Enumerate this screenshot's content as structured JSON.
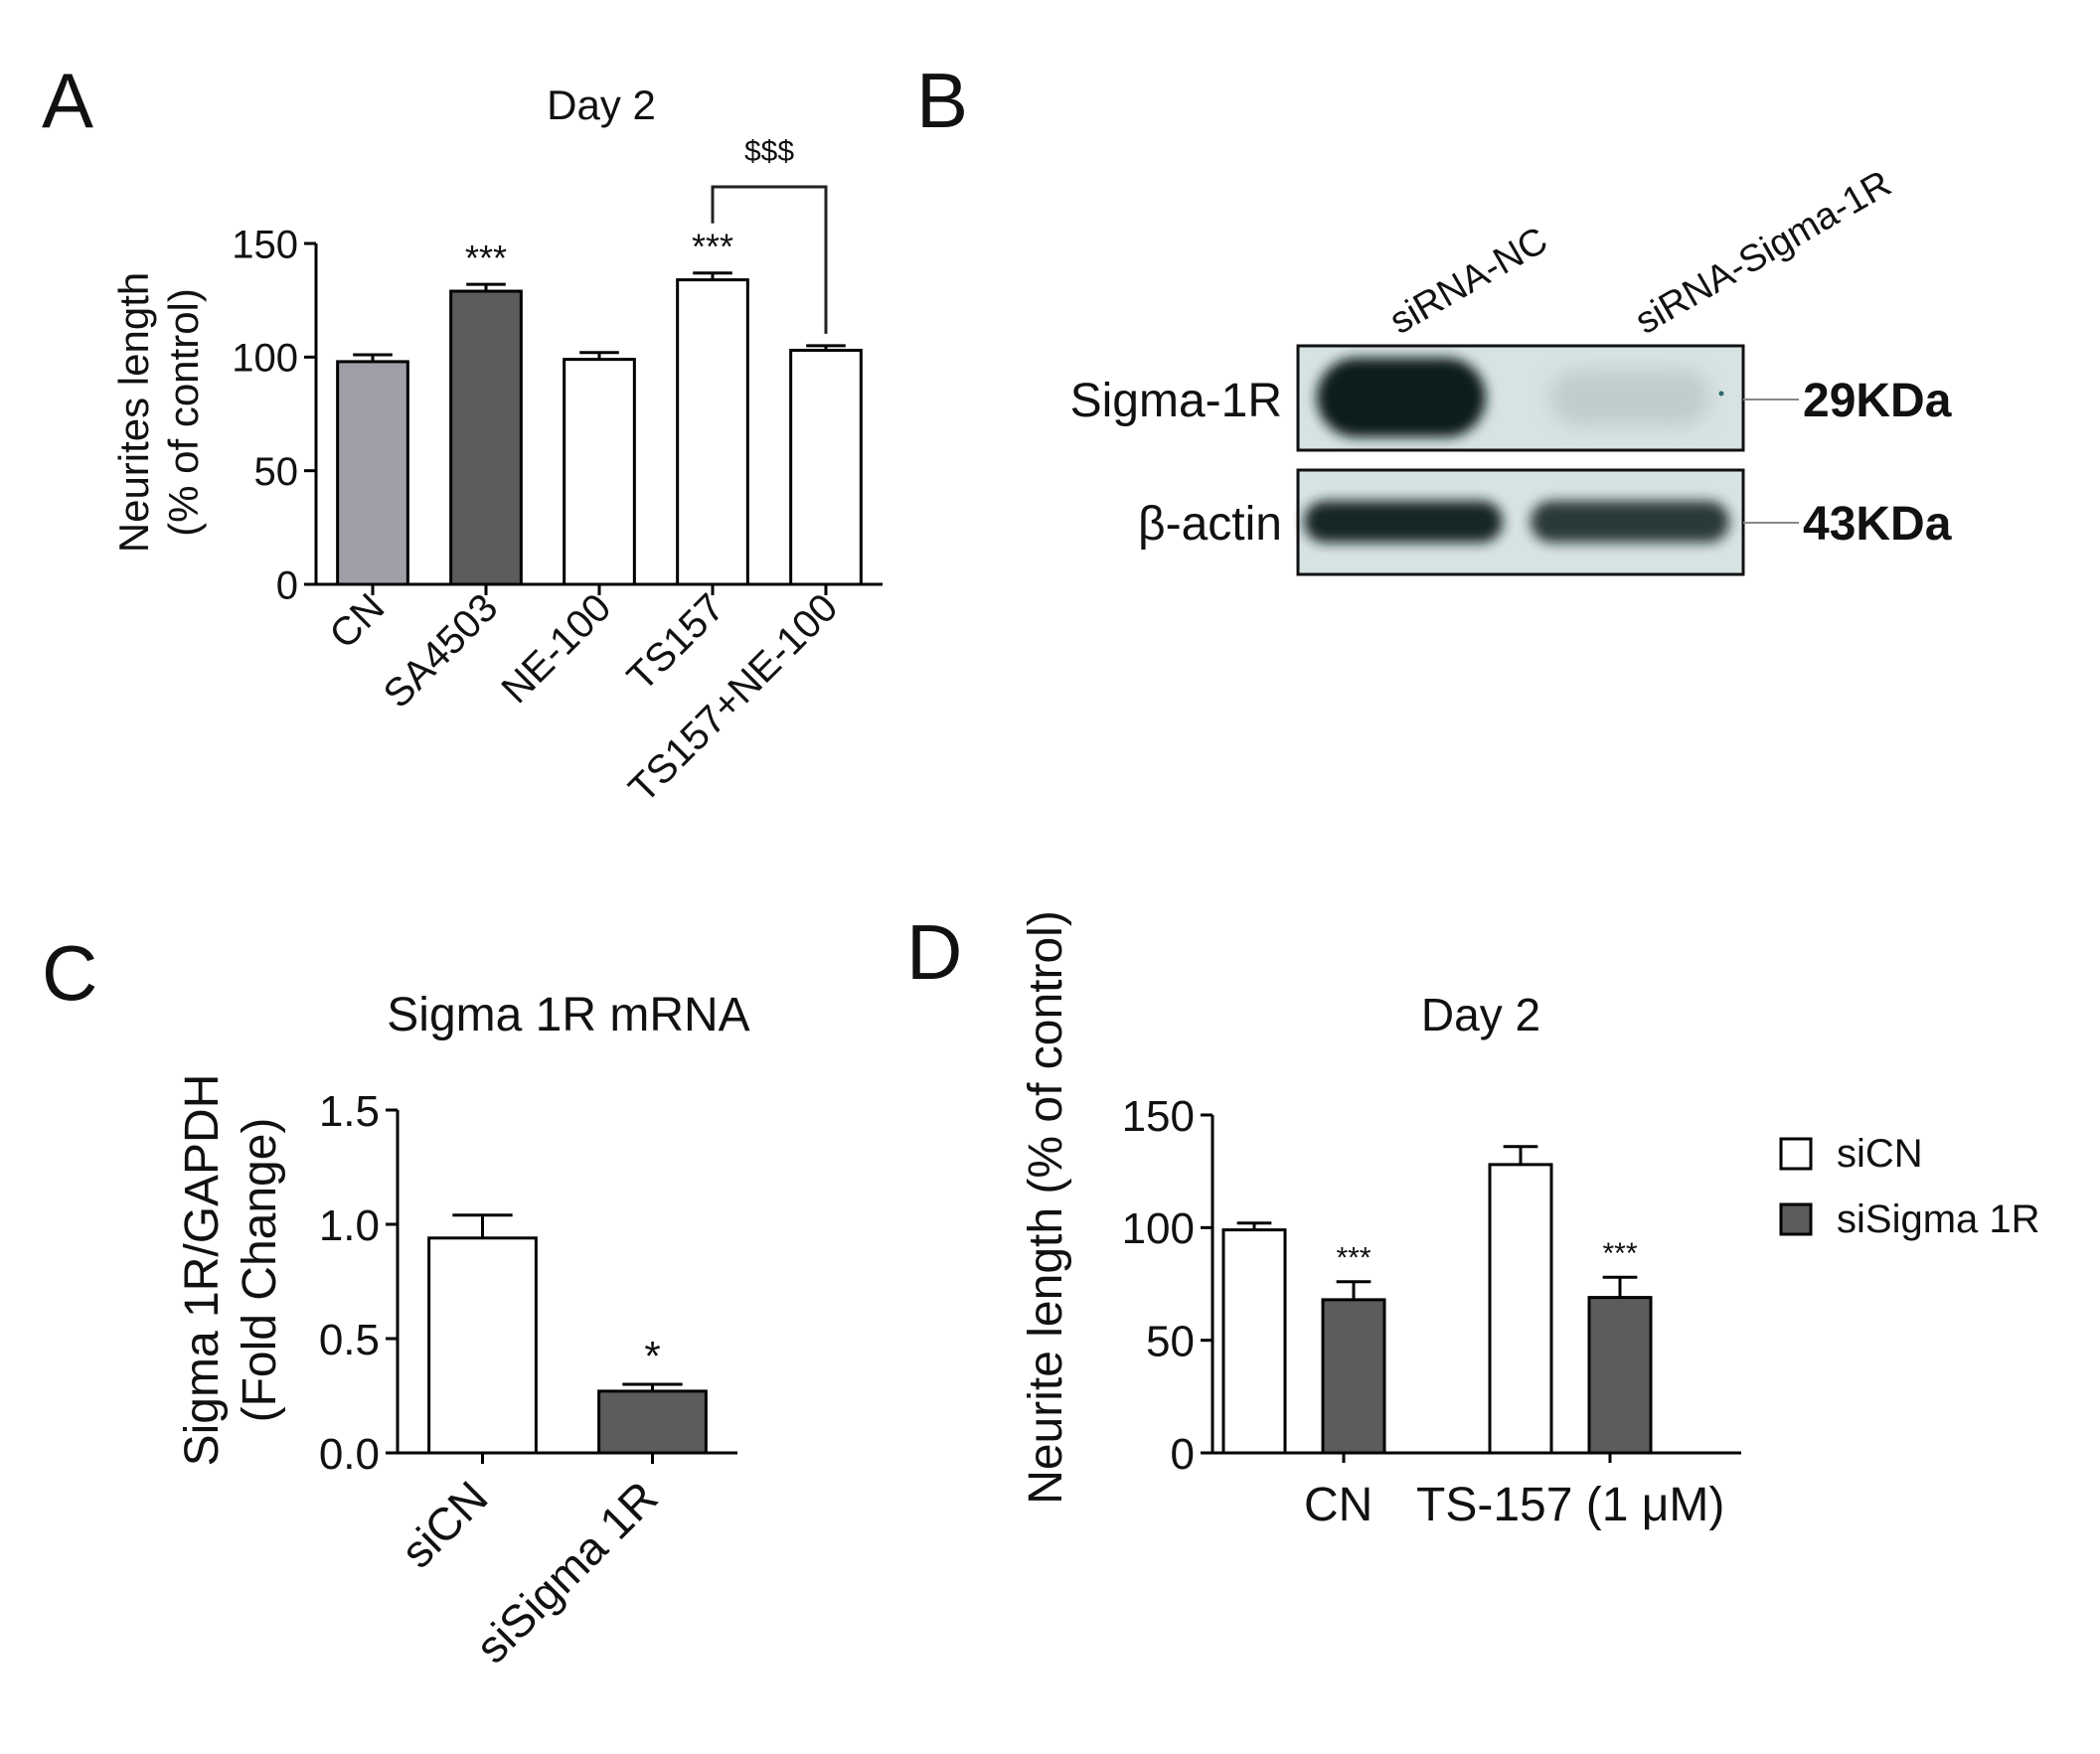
{
  "panels": {
    "A": "A",
    "B": "B",
    "C": "C",
    "D": "D"
  },
  "colors": {
    "gray": "#a09ea6",
    "dark": "#5c5c5c",
    "white": "#ffffff",
    "axis": "#000000",
    "bracket": "#222222"
  },
  "chart_data": [
    {
      "panel": "A",
      "type": "bar",
      "title": "Day 2",
      "ylabel": "Neurites length\n(% of control)",
      "xlabel": "",
      "ylim": [
        0,
        150
      ],
      "yticks": [
        0,
        50,
        100,
        150
      ],
      "categories": [
        "CN",
        "SA4503",
        "NE-100",
        "TS157",
        "TS157+NE-100"
      ],
      "values": [
        98,
        129,
        99,
        134,
        103
      ],
      "errors": [
        3,
        3,
        3,
        3,
        2
      ],
      "fill": [
        "gray",
        "dark",
        "white",
        "white",
        "white"
      ],
      "annotations": [
        "",
        "***",
        "",
        "***",
        ""
      ],
      "comparison": {
        "from": 3,
        "to": 4,
        "label": "$$$"
      }
    },
    {
      "panel": "C",
      "type": "bar",
      "title": "Sigma 1R mRNA",
      "ylabel": "Sigma 1R/GAPDH\n(Fold Change)",
      "xlabel": "",
      "ylim": [
        0,
        1.5
      ],
      "yticks": [
        "0.0",
        "0.5",
        "1.0",
        "1.5"
      ],
      "categories": [
        "siCN",
        "siSigma 1R"
      ],
      "values": [
        0.94,
        0.27
      ],
      "errors": [
        0.1,
        0.03
      ],
      "fill": [
        "white",
        "dark"
      ],
      "annotations": [
        "",
        "*"
      ]
    },
    {
      "panel": "D",
      "type": "bar",
      "title": "Day 2",
      "ylabel": "Neurite length (% of control)",
      "xlabel": "",
      "ylim": [
        0,
        150
      ],
      "yticks": [
        0,
        50,
        100,
        150
      ],
      "categories": [
        "CN",
        "TS-157 (1 μM)"
      ],
      "series": [
        {
          "name": "siCN",
          "values": [
            99,
            128
          ],
          "errors": [
            3,
            8
          ],
          "fill": "white",
          "annotations": [
            "",
            ""
          ]
        },
        {
          "name": "siSigma 1R",
          "values": [
            68,
            69
          ],
          "errors": [
            8,
            9
          ],
          "fill": "dark",
          "annotations": [
            "***",
            "***"
          ]
        }
      ],
      "legend": "right"
    }
  ],
  "western_blot": {
    "lanes": [
      "siRNA-NC",
      "siRNA-Sigma-1R"
    ],
    "bands": [
      {
        "protein": "Sigma-1R",
        "size": "29KDa",
        "intensity": [
          1.0,
          0.04
        ]
      },
      {
        "protein": "β-actin",
        "size": "43KDa",
        "intensity": [
          0.95,
          0.85
        ]
      }
    ]
  }
}
